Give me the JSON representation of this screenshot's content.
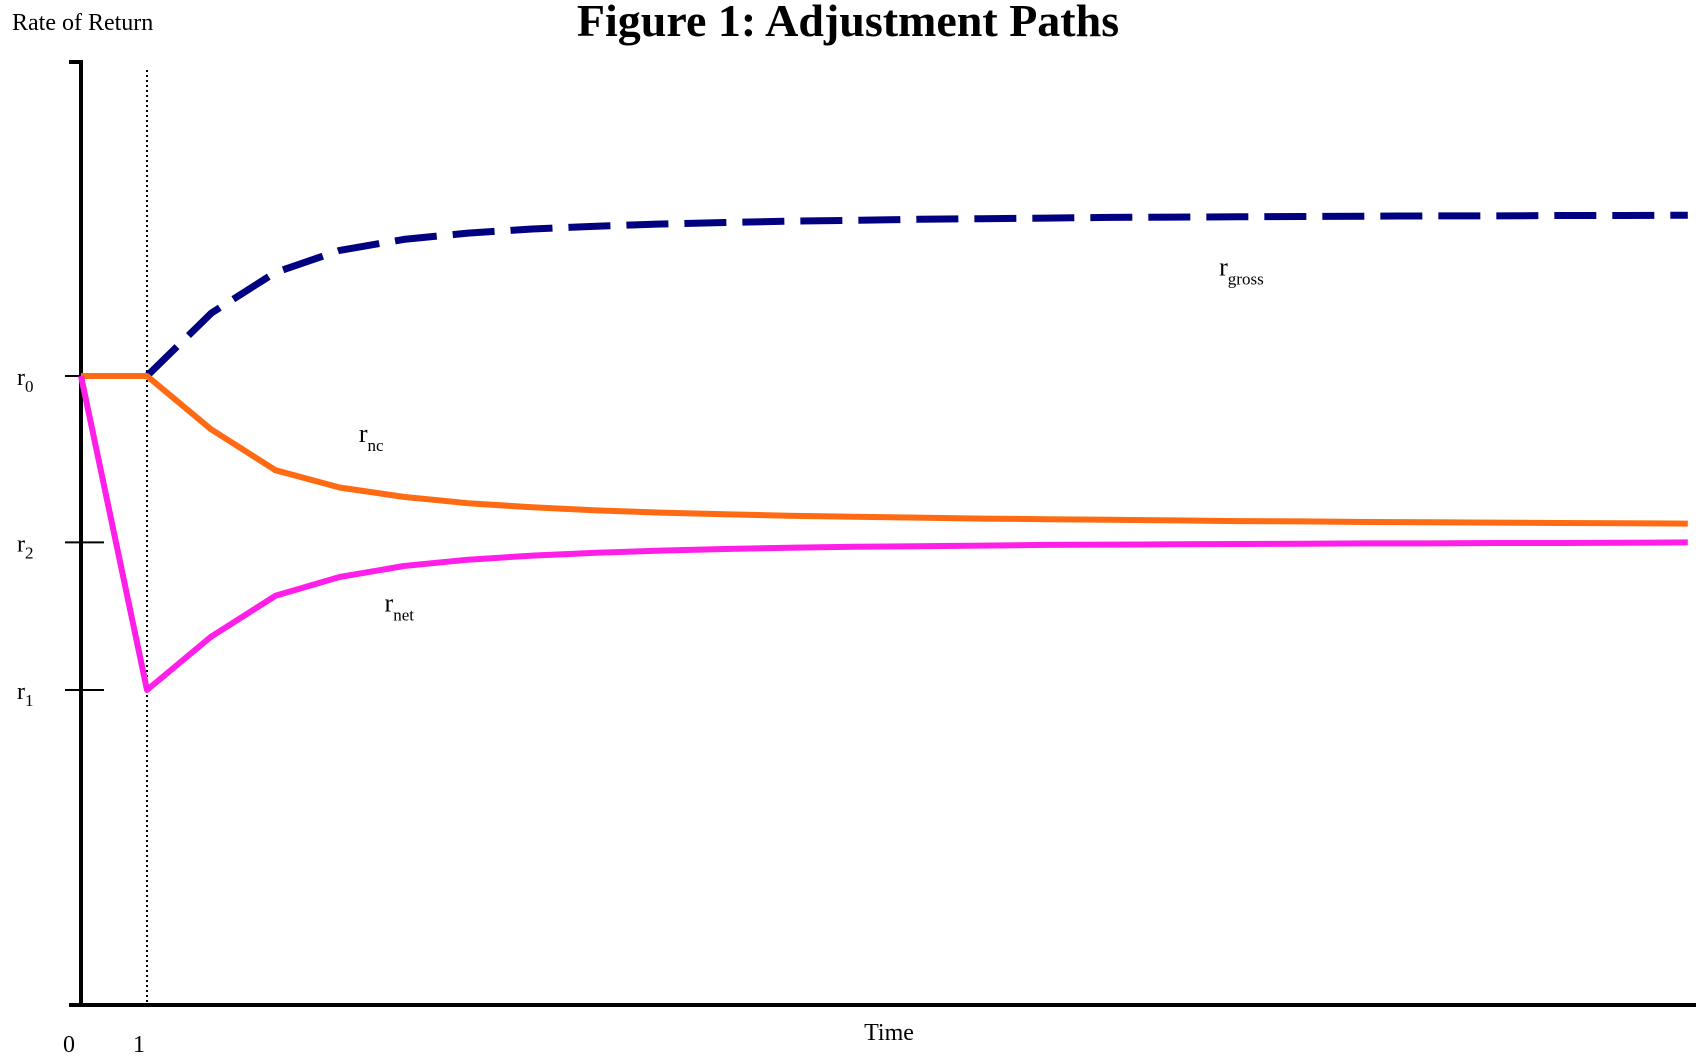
{
  "chart_data": {
    "type": "line",
    "title": "Figure 1: Adjustment Paths",
    "ylabel": "Rate of Return",
    "xlabel": "Time",
    "x_ticks": [
      {
        "label": "0",
        "value": 0
      },
      {
        "label": "1",
        "value": 1
      }
    ],
    "y_ticks": [
      {
        "base": "r",
        "sub": "0",
        "value": 0
      },
      {
        "base": "r",
        "sub": "2",
        "value": -0.53
      },
      {
        "base": "r",
        "sub": "1",
        "value": -1
      }
    ],
    "xlim": [
      0,
      25
    ],
    "ylim": [
      -2,
      1
    ],
    "series": [
      {
        "name": "r",
        "sub": "gross",
        "color": "#000080",
        "style": "dashed",
        "label_at": {
          "x": 17.7,
          "y": 0.32
        },
        "x": [
          1,
          2,
          3,
          4,
          5,
          6,
          7,
          8,
          9,
          10,
          11,
          12,
          13,
          14,
          15,
          16,
          17,
          18,
          19,
          20,
          21,
          22,
          23,
          24,
          25
        ],
        "y": [
          0,
          0.2,
          0.33,
          0.4,
          0.435,
          0.455,
          0.468,
          0.477,
          0.484,
          0.489,
          0.493,
          0.496,
          0.499,
          0.501,
          0.503,
          0.505,
          0.506,
          0.507,
          0.508,
          0.509,
          0.51,
          0.51,
          0.511,
          0.511,
          0.512
        ]
      },
      {
        "name": "r",
        "sub": "nc",
        "color": "#ff6a13",
        "style": "solid",
        "label_at": {
          "x": 4.3,
          "y": -0.21
        },
        "x": [
          0,
          1,
          2,
          3,
          4,
          5,
          6,
          7,
          8,
          9,
          10,
          11,
          12,
          13,
          14,
          15,
          16,
          17,
          18,
          19,
          20,
          21,
          22,
          23,
          24,
          25
        ],
        "y": [
          0,
          0,
          -0.17,
          -0.3,
          -0.355,
          -0.385,
          -0.405,
          -0.418,
          -0.428,
          -0.435,
          -0.44,
          -0.445,
          -0.448,
          -0.451,
          -0.454,
          -0.456,
          -0.458,
          -0.46,
          -0.462,
          -0.463,
          -0.465,
          -0.466,
          -0.467,
          -0.468,
          -0.469,
          -0.47
        ]
      },
      {
        "name": "r",
        "sub": "net",
        "color": "#ff1fe8",
        "style": "solid",
        "label_at": {
          "x": 4.7,
          "y": -0.75
        },
        "x": [
          0,
          1,
          2,
          3,
          4,
          5,
          6,
          7,
          8,
          9,
          10,
          11,
          12,
          13,
          14,
          15,
          16,
          17,
          18,
          19,
          20,
          21,
          22,
          23,
          24,
          25
        ],
        "y": [
          0,
          -1,
          -0.83,
          -0.7,
          -0.64,
          -0.605,
          -0.585,
          -0.572,
          -0.563,
          -0.556,
          -0.551,
          -0.547,
          -0.544,
          -0.542,
          -0.54,
          -0.538,
          -0.537,
          -0.536,
          -0.535,
          -0.534,
          -0.533,
          -0.533,
          -0.532,
          -0.532,
          -0.531,
          -0.53
        ]
      }
    ],
    "vertical_marker": {
      "x": 1,
      "style": "dotted"
    },
    "grid": false,
    "legend": "none"
  }
}
